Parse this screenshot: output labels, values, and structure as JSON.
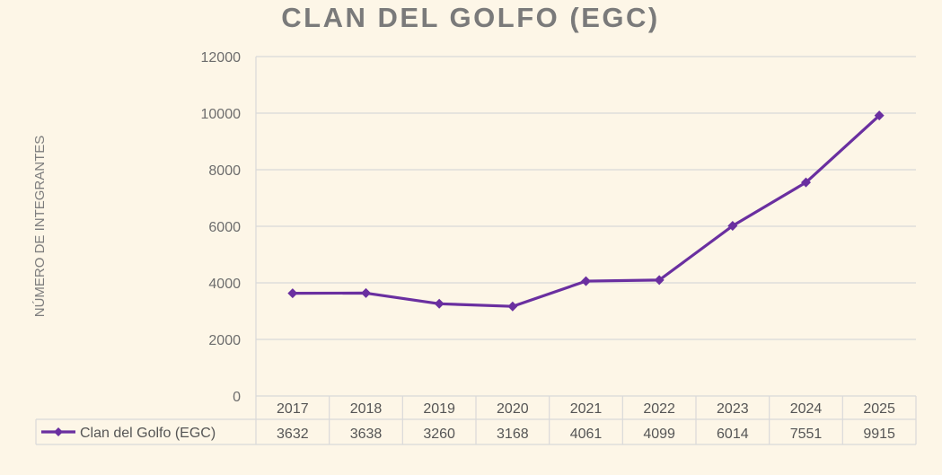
{
  "chart_data": {
    "type": "line",
    "title": "CLAN DEL GOLFO (EGC)",
    "xlabel": "",
    "ylabel": "NÚMERO DE INTEGRANTES",
    "categories": [
      "2017",
      "2018",
      "2019",
      "2020",
      "2021",
      "2022",
      "2023",
      "2024",
      "2025"
    ],
    "series": [
      {
        "name": "Clan del Golfo (EGC)",
        "values": [
          3632,
          3638,
          3260,
          3168,
          4061,
          4099,
          6014,
          7551,
          9915
        ]
      }
    ],
    "yticks": [
      "0",
      "2000",
      "4000",
      "6000",
      "8000",
      "10000",
      "12000"
    ],
    "ylim": [
      0,
      12000
    ],
    "grid": true,
    "legend": "bottom-left, inside data table",
    "data_table": true,
    "marker": "diamond",
    "colors": {
      "background": "#fdf6e7",
      "series": "#6a2fa0",
      "grid": "#d9d9d9",
      "title": "#7a7a7a"
    }
  }
}
